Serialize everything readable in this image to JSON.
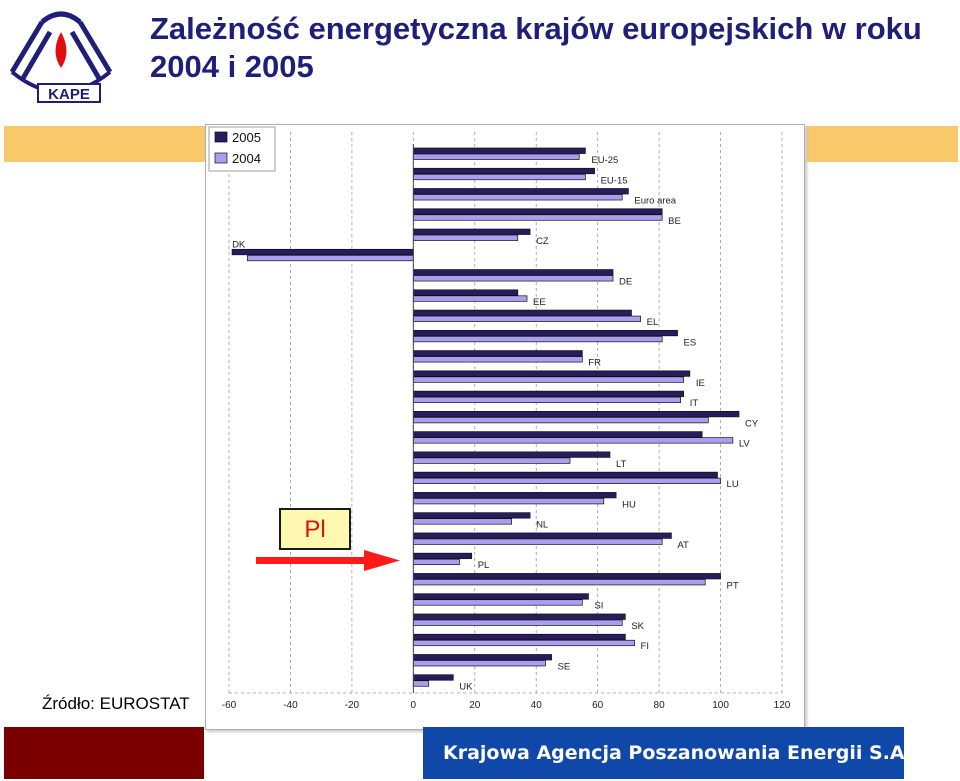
{
  "title": {
    "line1": "Zależność energetyczna krajów europejskich w roku",
    "line2": "2004 i 2005"
  },
  "logo": {
    "text": "KAPE",
    "icon": "kape-flame-logo-icon"
  },
  "source": "Źródło: EUROSTAT",
  "footer": {
    "org_name": "Krajowa Agencja Poszanowania Energii S.A."
  },
  "callout": {
    "label": "Pl"
  },
  "colors": {
    "title": "#1f1f7a",
    "band": "#f7c96b",
    "series_2005": "#2a1a5e",
    "series_2004": "#a99ff0",
    "arrow": "#ff1a1a",
    "callout_fill": "#fff8b0",
    "footer_left": "#7a0000",
    "footer_right": "#0f48a8"
  },
  "chart_data": {
    "type": "bar",
    "orientation": "horizontal",
    "categories": [
      "EU-25",
      "EU-15",
      "Euro area",
      "BE",
      "CZ",
      "DK",
      "DE",
      "EE",
      "EL",
      "ES",
      "FR",
      "IE",
      "IT",
      "CY",
      "LV",
      "LT",
      "LU",
      "HU",
      "NL",
      "AT",
      "PL",
      "PT",
      "SI",
      "SK",
      "FI",
      "SE",
      "UK"
    ],
    "series": [
      {
        "name": "2005",
        "values": [
          56,
          59,
          70,
          81,
          38,
          -59,
          65,
          34,
          71,
          86,
          55,
          90,
          88,
          106,
          94,
          64,
          99,
          66,
          38,
          84,
          19,
          100,
          57,
          69,
          69,
          45,
          13
        ]
      },
      {
        "name": "2004",
        "values": [
          54,
          56,
          68,
          81,
          34,
          -54,
          65,
          37,
          74,
          81,
          55,
          88,
          87,
          96,
          104,
          51,
          100,
          62,
          32,
          81,
          15,
          95,
          55,
          68,
          72,
          43,
          5
        ]
      }
    ],
    "xlim": [
      -60,
      120
    ],
    "xticks": [
      -60,
      -40,
      -20,
      0,
      20,
      40,
      60,
      80,
      100,
      120
    ],
    "legend": "top-left",
    "grid": true,
    "annotation": "PL"
  }
}
